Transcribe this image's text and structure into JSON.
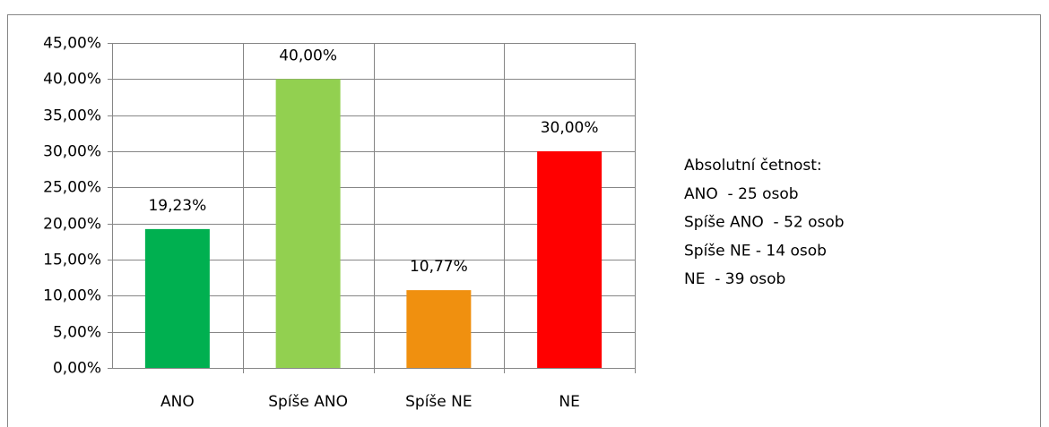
{
  "chart_data": {
    "type": "bar",
    "categories": [
      "ANO",
      "Spíše ANO",
      "Spíše NE",
      "NE"
    ],
    "values": [
      19.23,
      40,
      10.77,
      30
    ],
    "value_labels": [
      "19,23%",
      "40,00%",
      "10,77%",
      "30,00%"
    ],
    "colors": [
      "#00b050",
      "#92d050",
      "#f0900f",
      "#ff0000"
    ],
    "ylim": [
      0,
      45
    ],
    "yticks": [
      {
        "value": 0,
        "label": "0,00%"
      },
      {
        "value": 5,
        "label": "5,00%"
      },
      {
        "value": 10,
        "label": "10,00%"
      },
      {
        "value": 15,
        "label": "15,00%"
      },
      {
        "value": 20,
        "label": "20,00%"
      },
      {
        "value": 25,
        "label": "25,00%"
      },
      {
        "value": 30,
        "label": "30,00%"
      },
      {
        "value": 35,
        "label": "35,00%"
      },
      {
        "value": 40,
        "label": "40,00%"
      },
      {
        "value": 45,
        "label": "45,00%"
      }
    ],
    "grid": true,
    "annotation": [
      "Absolutní četnost:",
      "ANO  - 25 osob",
      "Spíše ANO  - 52 osob",
      "Spíše NE - 14 osob",
      "NE  - 39 osob"
    ]
  }
}
